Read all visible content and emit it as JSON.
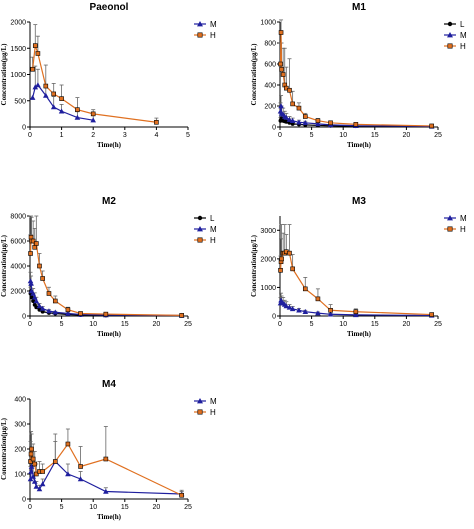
{
  "chart_data": [
    {
      "type": "line",
      "title": "Paeonol",
      "xlabel": "Time(h)",
      "ylabel": "Concentration(μg/L)",
      "xlim": [
        0,
        5
      ],
      "ylim": [
        0,
        2000
      ],
      "xticks": [
        0,
        1,
        2,
        3,
        4,
        5
      ],
      "yticks": [
        0,
        500,
        1000,
        1500,
        2000
      ],
      "grid": false,
      "legend": "right",
      "series": [
        {
          "name": "M",
          "marker": "triangle",
          "color": "#1f1f9e",
          "x": [
            0.083,
            0.167,
            0.25,
            0.5,
            0.75,
            1,
            1.5,
            2
          ],
          "y": [
            560,
            760,
            800,
            600,
            380,
            300,
            180,
            130
          ],
          "err": [
            0,
            400,
            300,
            200,
            200,
            130,
            110,
            90
          ]
        },
        {
          "name": "H",
          "marker": "square",
          "color": "#e07020",
          "x": [
            0.083,
            0.167,
            0.25,
            0.5,
            0.75,
            1,
            1.5,
            2,
            4
          ],
          "y": [
            1100,
            1550,
            1400,
            780,
            630,
            540,
            330,
            250,
            90
          ],
          "err": [
            230,
            400,
            330,
            400,
            200,
            260,
            230,
            80,
            80
          ]
        }
      ]
    },
    {
      "type": "line",
      "title": "M1",
      "xlabel": "Time(h)",
      "ylabel": "Concentration(μg/L)",
      "xlim": [
        0,
        25
      ],
      "ylim": [
        0,
        1000
      ],
      "xticks": [
        0,
        5,
        10,
        15,
        20,
        25
      ],
      "yticks": [
        0,
        200,
        400,
        600,
        800,
        1000
      ],
      "grid": false,
      "legend": "right",
      "series": [
        {
          "name": "L",
          "marker": "circle",
          "color": "#000000",
          "x": [
            0.083,
            0.167,
            0.25,
            0.5,
            0.75,
            1,
            1.5,
            2,
            3,
            4,
            6,
            8,
            12,
            24
          ],
          "y": [
            60,
            70,
            80,
            60,
            55,
            50,
            40,
            30,
            25,
            20,
            15,
            12,
            8,
            5
          ],
          "err": [
            30,
            30,
            30,
            25,
            20,
            20,
            15,
            12,
            10,
            8,
            6,
            5,
            4,
            3
          ]
        },
        {
          "name": "M",
          "marker": "triangle",
          "color": "#1f1f9e",
          "x": [
            0.083,
            0.167,
            0.25,
            0.5,
            0.75,
            1,
            1.5,
            2,
            3,
            4,
            6,
            8,
            12,
            24
          ],
          "y": [
            150,
            200,
            130,
            120,
            100,
            90,
            70,
            60,
            45,
            40,
            30,
            20,
            12,
            6
          ],
          "err": [
            80,
            100,
            70,
            60,
            50,
            40,
            30,
            25,
            20,
            15,
            12,
            10,
            6,
            3
          ]
        },
        {
          "name": "H",
          "marker": "square",
          "color": "#e07020",
          "x": [
            0.083,
            0.167,
            0.25,
            0.5,
            0.75,
            1,
            1.5,
            2,
            3,
            4,
            6,
            8,
            12,
            24
          ],
          "y": [
            600,
            900,
            550,
            500,
            400,
            370,
            350,
            220,
            180,
            100,
            60,
            40,
            25,
            10
          ],
          "err": [
            200,
            120,
            250,
            250,
            350,
            200,
            300,
            120,
            50,
            30,
            20,
            15,
            10,
            5
          ]
        }
      ]
    },
    {
      "type": "line",
      "title": "M2",
      "xlabel": "Time(h)",
      "ylabel": "Concentration(μg/L)",
      "xlim": [
        0,
        25
      ],
      "ylim": [
        0,
        8000
      ],
      "xticks": [
        0,
        5,
        10,
        15,
        20,
        25
      ],
      "yticks": [
        0,
        2000,
        4000,
        6000,
        8000
      ],
      "grid": false,
      "legend": "right",
      "series": [
        {
          "name": "L",
          "marker": "circle",
          "color": "#000000",
          "x": [
            0.083,
            0.167,
            0.25,
            0.5,
            0.75,
            1,
            1.5,
            2,
            3,
            4,
            6,
            8,
            12,
            24
          ],
          "y": [
            1800,
            2000,
            1500,
            1200,
            900,
            700,
            500,
            350,
            250,
            200,
            120,
            80,
            50,
            30
          ],
          "err": [
            500,
            500,
            400,
            300,
            250,
            200,
            150,
            100,
            80,
            60,
            40,
            30,
            20,
            10
          ]
        },
        {
          "name": "M",
          "marker": "triangle",
          "color": "#1f1f9e",
          "x": [
            0.083,
            0.167,
            0.25,
            0.5,
            0.75,
            1,
            1.5,
            2,
            3,
            4,
            6,
            8,
            12,
            24
          ],
          "y": [
            2800,
            2600,
            2000,
            1800,
            1500,
            1200,
            800,
            600,
            400,
            300,
            200,
            120,
            80,
            40
          ],
          "err": [
            700,
            600,
            500,
            400,
            350,
            300,
            200,
            150,
            100,
            80,
            60,
            40,
            30,
            15
          ]
        },
        {
          "name": "H",
          "marker": "square",
          "color": "#e07020",
          "x": [
            0.083,
            0.167,
            0.25,
            0.5,
            0.75,
            1,
            1.5,
            2,
            3,
            4,
            6,
            8,
            12,
            24
          ],
          "y": [
            5000,
            6300,
            6000,
            6000,
            5500,
            5800,
            4000,
            3000,
            1800,
            1200,
            500,
            200,
            150,
            50
          ],
          "err": [
            1500,
            1700,
            1900,
            1600,
            1500,
            2200,
            1000,
            600,
            500,
            400,
            200,
            100,
            60,
            30
          ]
        }
      ]
    },
    {
      "type": "line",
      "title": "M3",
      "xlabel": "Time(h)",
      "ylabel": "Concentration(μg/L)",
      "xlim": [
        0,
        25
      ],
      "ylim": [
        0,
        3500
      ],
      "xticks": [
        0,
        5,
        10,
        15,
        20,
        25
      ],
      "yticks": [
        0,
        1000,
        2000,
        3000
      ],
      "grid": false,
      "legend": "right",
      "series": [
        {
          "name": "M",
          "marker": "triangle",
          "color": "#1f1f9e",
          "x": [
            0.083,
            0.167,
            0.25,
            0.5,
            0.75,
            1,
            1.5,
            2,
            3,
            4,
            6,
            8,
            12,
            24
          ],
          "y": [
            450,
            550,
            500,
            450,
            400,
            350,
            300,
            250,
            200,
            150,
            100,
            60,
            40,
            20
          ],
          "err": [
            200,
            250,
            200,
            200,
            150,
            150,
            100,
            80,
            60,
            50,
            40,
            30,
            20,
            10
          ]
        },
        {
          "name": "H",
          "marker": "square",
          "color": "#e07020",
          "x": [
            0.083,
            0.167,
            0.25,
            0.5,
            0.75,
            1,
            1.5,
            2,
            4,
            6,
            8,
            12,
            24
          ],
          "y": [
            1600,
            1900,
            2000,
            2200,
            2200,
            2250,
            2200,
            1650,
            950,
            600,
            200,
            150,
            50
          ],
          "err": [
            500,
            800,
            1200,
            700,
            1000,
            600,
            1000,
            500,
            400,
            350,
            200,
            100,
            30
          ]
        }
      ]
    },
    {
      "type": "line",
      "title": "M4",
      "xlabel": "Time(h)",
      "ylabel": "Concentration(μg/L)",
      "xlim": [
        0,
        25
      ],
      "ylim": [
        0,
        400
      ],
      "xticks": [
        0,
        5,
        10,
        15,
        20,
        25
      ],
      "yticks": [
        0,
        100,
        200,
        300,
        400
      ],
      "grid": false,
      "legend": "right",
      "series": [
        {
          "name": "M",
          "marker": "triangle",
          "color": "#1f1f9e",
          "x": [
            0.083,
            0.167,
            0.25,
            0.5,
            0.75,
            1,
            1.5,
            2,
            4,
            6,
            8,
            12,
            24
          ],
          "y": [
            80,
            110,
            130,
            90,
            70,
            50,
            40,
            60,
            150,
            100,
            80,
            30,
            20
          ],
          "err": [
            50,
            60,
            50,
            40,
            30,
            20,
            15,
            20,
            80,
            40,
            30,
            15,
            10
          ]
        },
        {
          "name": "H",
          "marker": "square",
          "color": "#e07020",
          "x": [
            0.083,
            0.167,
            0.25,
            0.5,
            0.75,
            1,
            1.5,
            2,
            4,
            6,
            8,
            12,
            24
          ],
          "y": [
            150,
            180,
            200,
            160,
            140,
            100,
            110,
            110,
            150,
            220,
            130,
            160,
            15
          ],
          "err": [
            80,
            90,
            60,
            60,
            50,
            40,
            40,
            30,
            110,
            60,
            80,
            130,
            20
          ]
        }
      ]
    }
  ]
}
